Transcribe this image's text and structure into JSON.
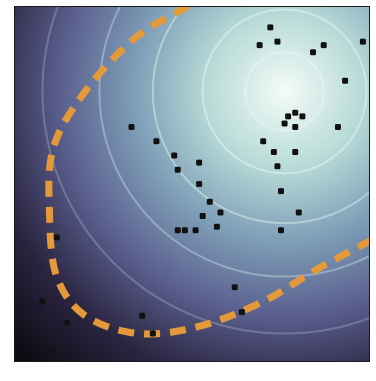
{
  "chart_data": {
    "type": "scatter",
    "title": "",
    "xlabel": "",
    "ylabel": "",
    "xlim": [
      0,
      1
    ],
    "ylim": [
      0,
      1
    ],
    "grid": false,
    "legend": "none",
    "background": {
      "kind": "radial-density",
      "center": [
        0.76,
        0.76
      ],
      "colors": [
        "#f4fbf8",
        "#b9dcd8",
        "#7f9fb8",
        "#5a5f8e",
        "#2a2440",
        "#0d0a12"
      ]
    },
    "contours": {
      "center": [
        0.76,
        0.76
      ],
      "levels": [
        0.11,
        0.23,
        0.37,
        0.52,
        0.68
      ],
      "color": "#dff1ee"
    },
    "decision_boundary": {
      "style": "dashed",
      "color": "#e59a3a",
      "points": [
        [
          0.49,
          1.0
        ],
        [
          0.34,
          0.91
        ],
        [
          0.2,
          0.76
        ],
        [
          0.11,
          0.6
        ],
        [
          0.1,
          0.41
        ],
        [
          0.12,
          0.24
        ],
        [
          0.2,
          0.13
        ],
        [
          0.35,
          0.08
        ],
        [
          0.52,
          0.1
        ],
        [
          0.7,
          0.17
        ],
        [
          0.85,
          0.26
        ],
        [
          1.0,
          0.34
        ]
      ]
    },
    "point_color": "#111111",
    "points": [
      {
        "x": 0.72,
        "y": 0.94
      },
      {
        "x": 0.69,
        "y": 0.89
      },
      {
        "x": 0.74,
        "y": 0.9
      },
      {
        "x": 0.87,
        "y": 0.89
      },
      {
        "x": 0.84,
        "y": 0.87
      },
      {
        "x": 0.98,
        "y": 0.9
      },
      {
        "x": 0.93,
        "y": 0.79
      },
      {
        "x": 0.77,
        "y": 0.69
      },
      {
        "x": 0.79,
        "y": 0.7
      },
      {
        "x": 0.81,
        "y": 0.69
      },
      {
        "x": 0.76,
        "y": 0.67
      },
      {
        "x": 0.79,
        "y": 0.66
      },
      {
        "x": 0.7,
        "y": 0.62
      },
      {
        "x": 0.73,
        "y": 0.59
      },
      {
        "x": 0.79,
        "y": 0.59
      },
      {
        "x": 0.91,
        "y": 0.66
      },
      {
        "x": 0.33,
        "y": 0.66
      },
      {
        "x": 0.4,
        "y": 0.62
      },
      {
        "x": 0.45,
        "y": 0.58
      },
      {
        "x": 0.52,
        "y": 0.56
      },
      {
        "x": 0.46,
        "y": 0.54
      },
      {
        "x": 0.74,
        "y": 0.55
      },
      {
        "x": 0.52,
        "y": 0.5
      },
      {
        "x": 0.75,
        "y": 0.48
      },
      {
        "x": 0.55,
        "y": 0.45
      },
      {
        "x": 0.58,
        "y": 0.42
      },
      {
        "x": 0.53,
        "y": 0.41
      },
      {
        "x": 0.8,
        "y": 0.42
      },
      {
        "x": 0.46,
        "y": 0.37
      },
      {
        "x": 0.48,
        "y": 0.37
      },
      {
        "x": 0.51,
        "y": 0.37
      },
      {
        "x": 0.57,
        "y": 0.38
      },
      {
        "x": 0.75,
        "y": 0.37
      },
      {
        "x": 0.12,
        "y": 0.35
      },
      {
        "x": 0.62,
        "y": 0.21
      },
      {
        "x": 0.08,
        "y": 0.17
      },
      {
        "x": 0.36,
        "y": 0.13
      },
      {
        "x": 0.64,
        "y": 0.14
      },
      {
        "x": 0.15,
        "y": 0.11
      },
      {
        "x": 0.39,
        "y": 0.08
      },
      {
        "x": 0.11,
        "y": 0.03
      }
    ]
  }
}
